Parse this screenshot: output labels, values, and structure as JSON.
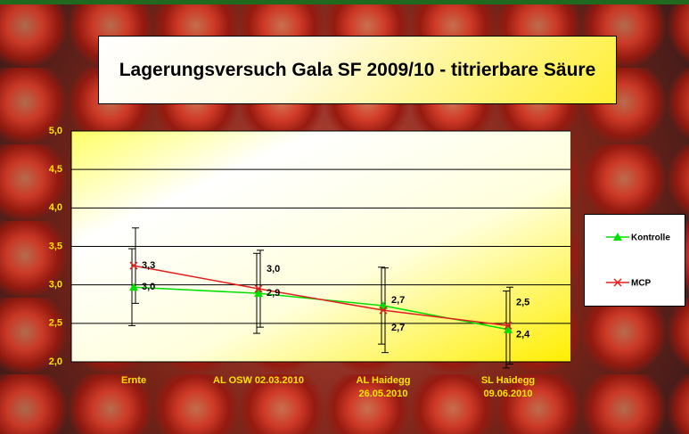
{
  "chart_data": {
    "type": "line",
    "title": "Lagerungsversuch Gala SF 2009/10 - titrierbare Säure",
    "categories": [
      "Ernte",
      "AL OSW 02.03.2010",
      "AL Haidegg\n26.05.2010",
      "SL Haidegg\n09.06.2010"
    ],
    "series": [
      {
        "name": "Kontrolle",
        "color": "#00e000",
        "values": [
          2.97,
          2.89,
          2.73,
          2.42
        ],
        "value_labels": [
          "3,0",
          "2,9",
          "2,7",
          "2,4"
        ],
        "errors": [
          0.5,
          0.52,
          0.5,
          0.5
        ]
      },
      {
        "name": "MCP",
        "color": "#e02020",
        "values": [
          3.25,
          2.95,
          2.67,
          2.47
        ],
        "value_labels": [
          "3,3",
          "3,0",
          "2,7",
          "2,5"
        ],
        "errors": [
          0.49,
          0.5,
          0.55,
          0.5
        ]
      }
    ],
    "ylim": [
      2,
      5
    ],
    "yticks": [
      {
        "value": 2,
        "label": "2,0"
      },
      {
        "value": 2.5,
        "label": "2,5"
      },
      {
        "value": 3,
        "label": "3,0"
      },
      {
        "value": 3.5,
        "label": "3,5"
      },
      {
        "value": 4,
        "label": "4,0"
      },
      {
        "value": 4.5,
        "label": "4,5"
      },
      {
        "value": 5,
        "label": "5,0"
      }
    ],
    "grid": true,
    "legend": "right"
  }
}
